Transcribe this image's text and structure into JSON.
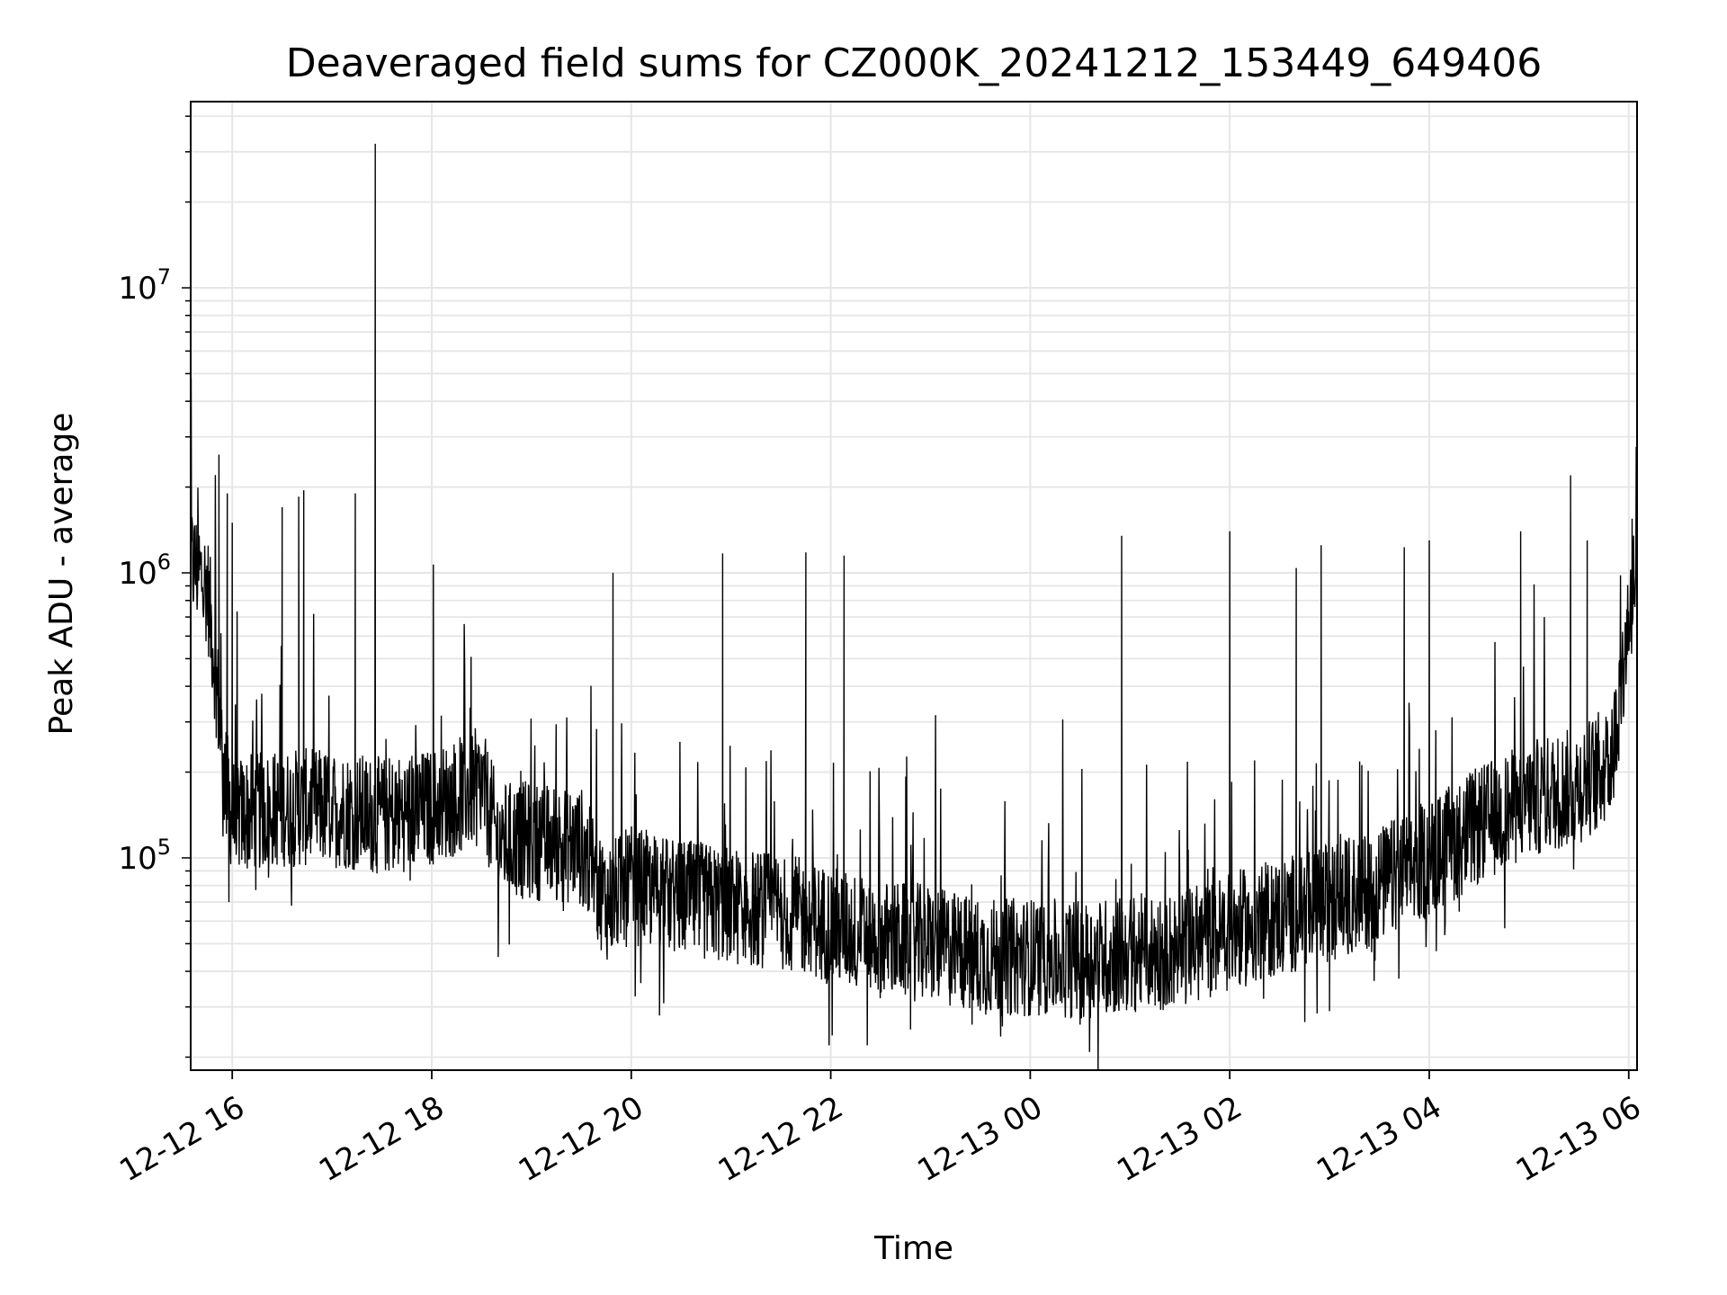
{
  "chart_data": {
    "type": "line",
    "title": "Deaveraged field sums for CZ000K_20241212_153449_649406",
    "xlabel": "Time",
    "ylabel": "Peak ADU - average",
    "yscale": "log",
    "ylim": [
      18000,
      45000000
    ],
    "xlim": [
      "2024-12-12 15:35",
      "2024-12-13 06:05"
    ],
    "grid": true,
    "line_color": "#000000",
    "grid_color": "#e6e6e6",
    "x_ticks": [
      {
        "label": "12-12 16",
        "value": "2024-12-12 16:00"
      },
      {
        "label": "12-12 18",
        "value": "2024-12-12 18:00"
      },
      {
        "label": "12-12 20",
        "value": "2024-12-12 20:00"
      },
      {
        "label": "12-12 22",
        "value": "2024-12-12 22:00"
      },
      {
        "label": "12-13 00",
        "value": "2024-12-13 00:00"
      },
      {
        "label": "12-13 02",
        "value": "2024-12-13 02:00"
      },
      {
        "label": "12-13 04",
        "value": "2024-12-13 04:00"
      },
      {
        "label": "12-13 06",
        "value": "2024-12-13 06:00"
      }
    ],
    "y_ticks": [
      {
        "base": "10",
        "exp": "5",
        "value": 100000
      },
      {
        "base": "10",
        "exp": "6",
        "value": 1000000
      },
      {
        "base": "10",
        "exp": "7",
        "value": 10000000
      }
    ],
    "series": [
      {
        "baseline": [
          [
            "2024-12-12 15:35",
            1100000
          ],
          [
            "2024-12-12 15:45",
            900000
          ],
          [
            "2024-12-12 15:50",
            450000
          ],
          [
            "2024-12-12 15:55",
            200000
          ],
          [
            "2024-12-12 16:00",
            140000
          ],
          [
            "2024-12-12 16:30",
            150000
          ],
          [
            "2024-12-12 17:00",
            150000
          ],
          [
            "2024-12-12 17:30",
            140000
          ],
          [
            "2024-12-12 18:00",
            150000
          ],
          [
            "2024-12-12 18:30",
            180000
          ],
          [
            "2024-12-12 18:40",
            115000
          ],
          [
            "2024-12-12 19:00",
            115000
          ],
          [
            "2024-12-12 19:30",
            110000
          ],
          [
            "2024-12-12 19:45",
            70000
          ],
          [
            "2024-12-12 20:00",
            80000
          ],
          [
            "2024-12-12 20:30",
            72000
          ],
          [
            "2024-12-12 21:00",
            68000
          ],
          [
            "2024-12-12 21:30",
            65000
          ],
          [
            "2024-12-12 22:00",
            58000
          ],
          [
            "2024-12-12 22:30",
            52000
          ],
          [
            "2024-12-12 23:00",
            50000
          ],
          [
            "2024-12-12 23:30",
            45000
          ],
          [
            "2024-12-13 00:00",
            45000
          ],
          [
            "2024-12-13 00:30",
            44000
          ],
          [
            "2024-12-13 01:00",
            46000
          ],
          [
            "2024-12-13 01:30",
            48000
          ],
          [
            "2024-12-13 02:00",
            55000
          ],
          [
            "2024-12-13 02:30",
            62000
          ],
          [
            "2024-12-13 03:00",
            70000
          ],
          [
            "2024-12-13 03:30",
            80000
          ],
          [
            "2024-12-13 04:00",
            100000
          ],
          [
            "2024-12-13 04:30",
            130000
          ],
          [
            "2024-12-13 05:00",
            160000
          ],
          [
            "2024-12-13 05:30",
            180000
          ],
          [
            "2024-12-13 05:50",
            220000
          ],
          [
            "2024-12-13 06:00",
            700000
          ],
          [
            "2024-12-13 06:05",
            1100000
          ]
        ],
        "spikes": [
          [
            "2024-12-12 15:52",
            2600000
          ],
          [
            "2024-12-12 15:57",
            1900000
          ],
          [
            "2024-12-12 16:00",
            1500000
          ],
          [
            "2024-12-12 16:30",
            1700000
          ],
          [
            "2024-12-12 16:40",
            1850000
          ],
          [
            "2024-12-12 16:43",
            1950000
          ],
          [
            "2024-12-12 17:14",
            1900000
          ],
          [
            "2024-12-12 17:26",
            32000000
          ],
          [
            "2024-12-12 18:01",
            1070000
          ],
          [
            "2024-12-12 19:49",
            1000000
          ],
          [
            "2024-12-12 20:55",
            1170000
          ],
          [
            "2024-12-12 21:45",
            1180000
          ],
          [
            "2024-12-12 22:08",
            1150000
          ],
          [
            "2024-12-13 00:55",
            1350000
          ],
          [
            "2024-12-13 02:00",
            1400000
          ],
          [
            "2024-12-13 02:40",
            1040000
          ],
          [
            "2024-12-13 02:55",
            1250000
          ],
          [
            "2024-12-13 03:45",
            1230000
          ],
          [
            "2024-12-13 04:00",
            1300000
          ],
          [
            "2024-12-13 04:55",
            1400000
          ],
          [
            "2024-12-13 05:25",
            2200000
          ],
          [
            "2024-12-13 05:35",
            1300000
          ],
          [
            "2024-12-13 06:02",
            1550000
          ]
        ],
        "dips": [
          [
            "2024-12-12 15:58",
            70000
          ],
          [
            "2024-12-12 20:17",
            28000
          ],
          [
            "2024-12-12 21:59",
            22000
          ],
          [
            "2024-12-12 22:22",
            22000
          ],
          [
            "2024-12-12 22:48",
            25000
          ],
          [
            "2024-12-12 23:25",
            26000
          ],
          [
            "2024-12-13 00:30",
            26000
          ],
          [
            "2024-12-13 03:00",
            29000
          ]
        ]
      }
    ]
  }
}
